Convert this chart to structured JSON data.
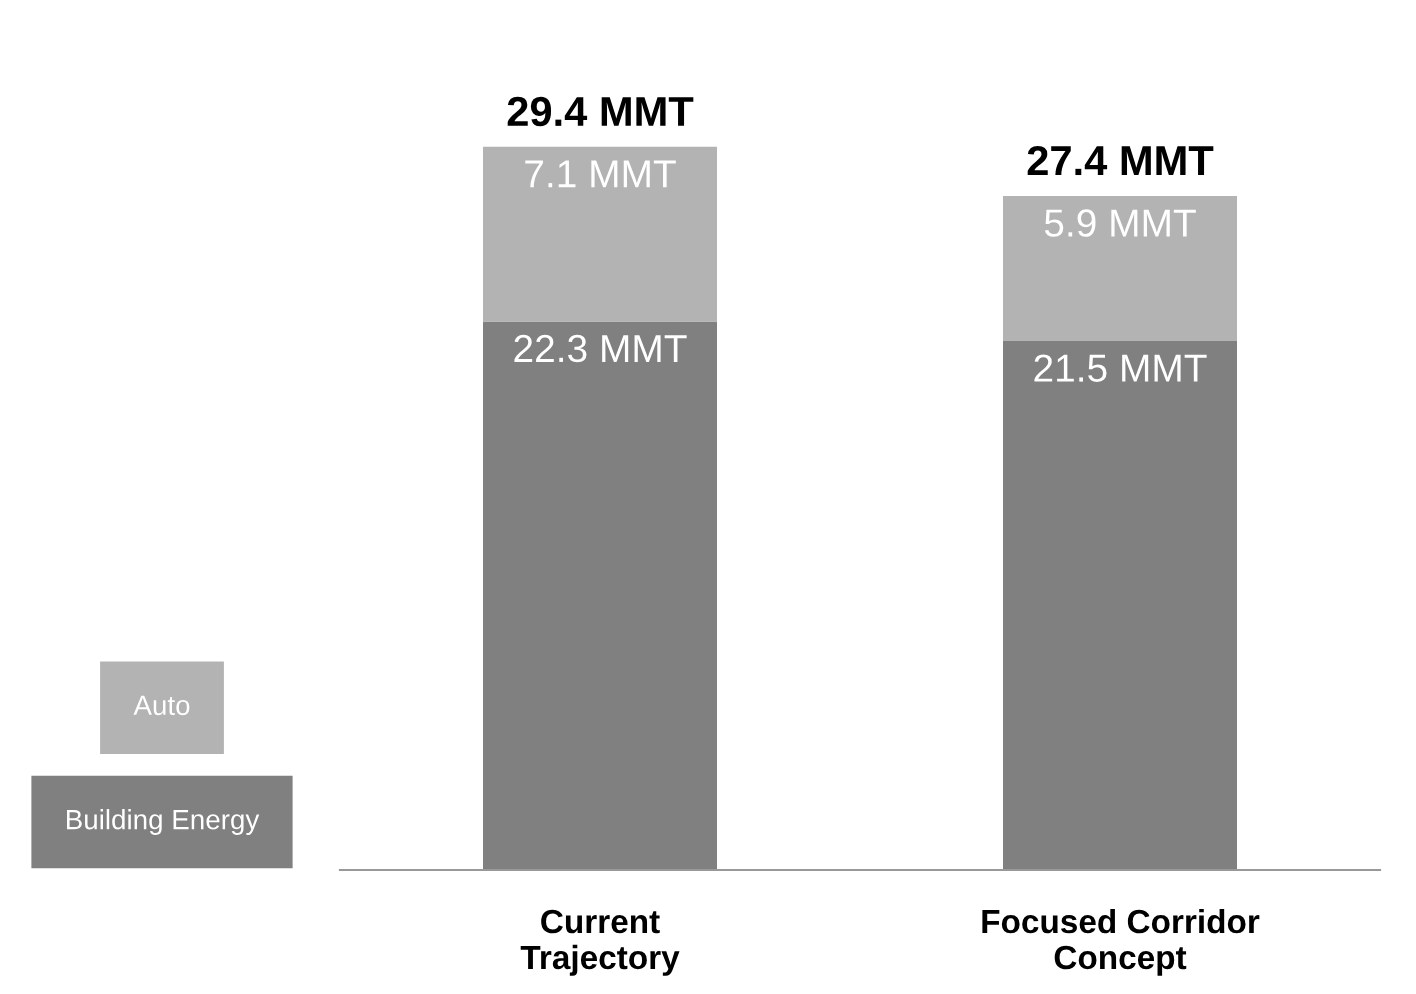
{
  "chart_data": {
    "type": "bar",
    "stacked": true,
    "categories": [
      "Current\nTrajectory",
      "Focused Corridor\nConcept"
    ],
    "series": [
      {
        "name": "Building Energy",
        "color": "#808080",
        "values": [
          22.3,
          21.5
        ],
        "value_labels": [
          "22.3 MMT",
          "21.5 MMT"
        ]
      },
      {
        "name": "Auto",
        "color": "#b3b3b3",
        "values": [
          7.1,
          5.9
        ],
        "value_labels": [
          "7.1 MMT",
          "5.9 MMT"
        ]
      }
    ],
    "totals": [
      "29.4 MMT",
      "27.4 MMT"
    ],
    "legend": "bottom left"
  }
}
